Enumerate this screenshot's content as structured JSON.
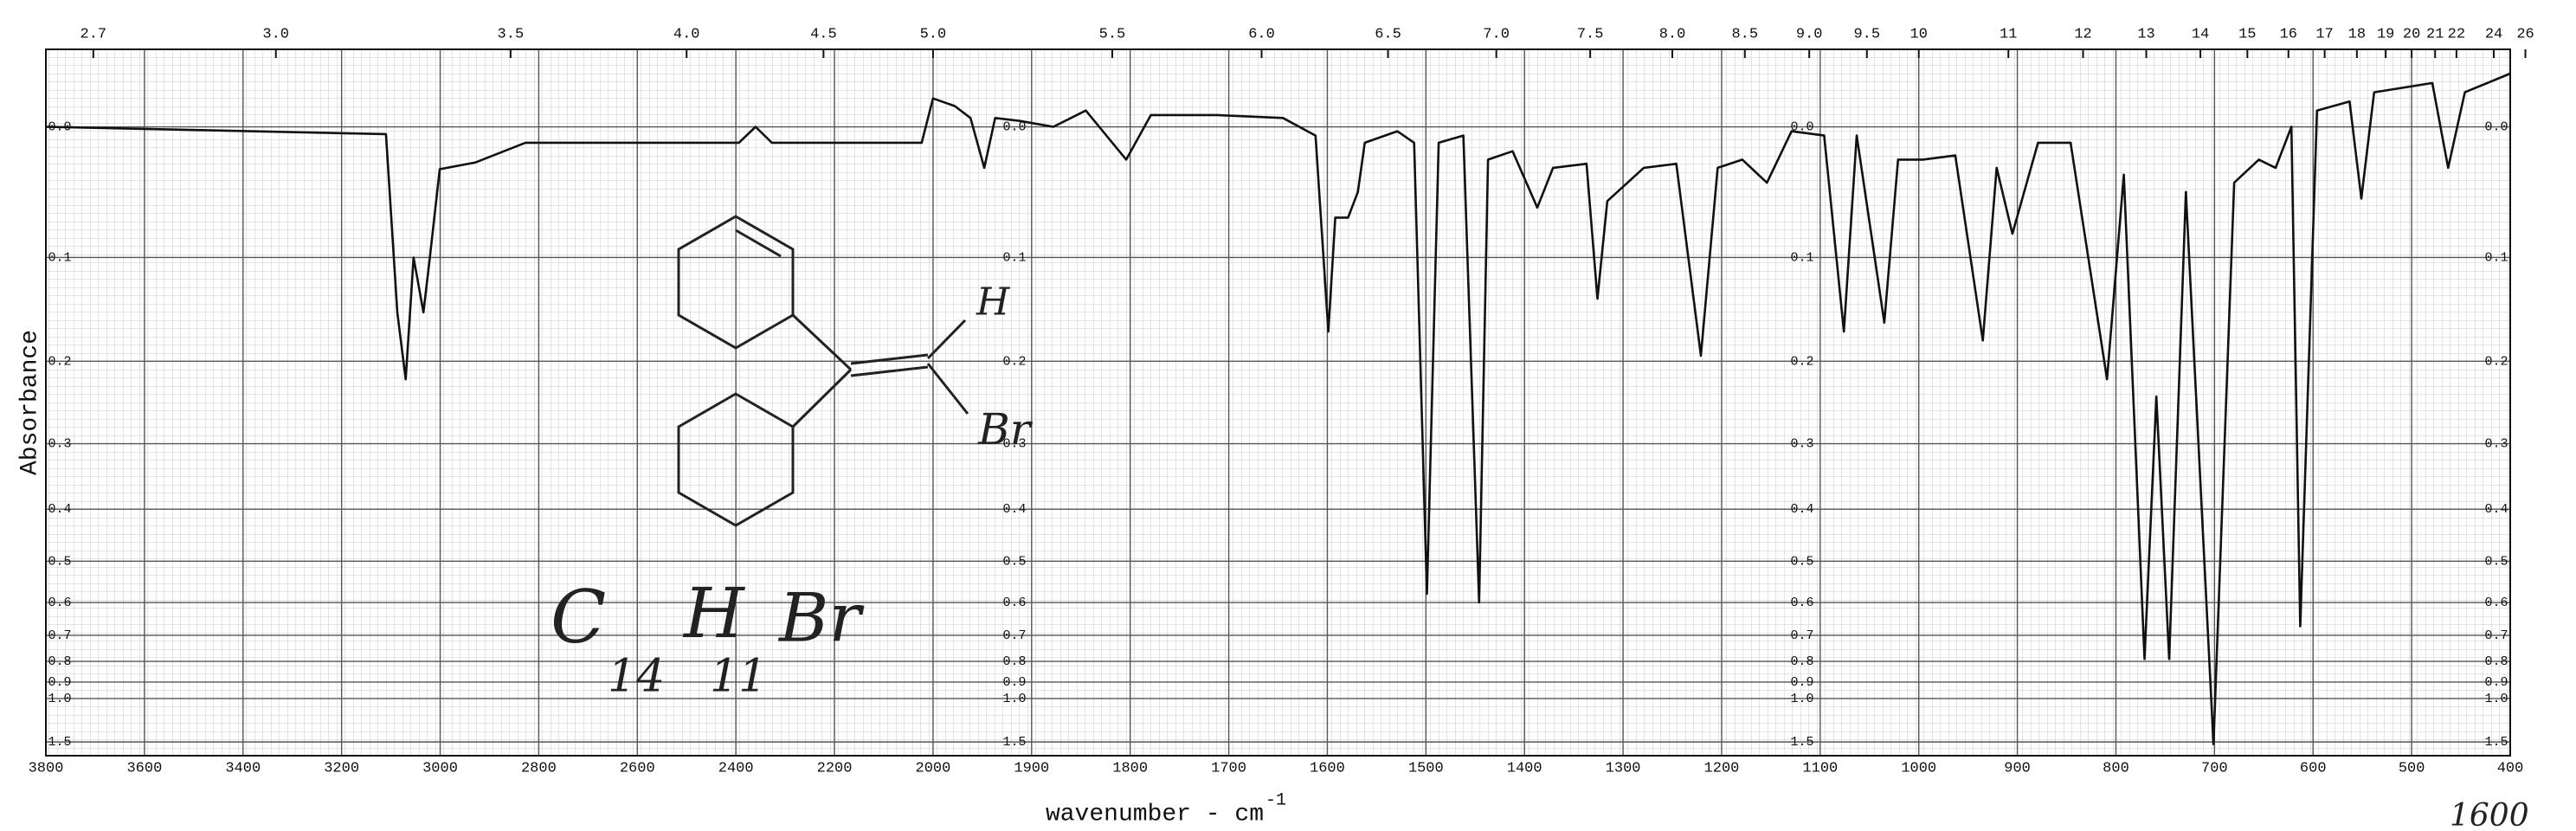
{
  "chart_data": {
    "type": "line",
    "y_label": "Absorbance",
    "x_label": "wavenumber - cm",
    "x_label_sup": "-1",
    "x": [
      3800,
      3110,
      3087,
      3070,
      3054,
      3034,
      3021,
      3001,
      2928,
      2827,
      2394,
      2360,
      2327,
      2023,
      2000,
      1978,
      1962,
      1948,
      1937,
      1912,
      1878,
      1845,
      1804,
      1779,
      1712,
      1645,
      1612,
      1599,
      1592,
      1579,
      1569,
      1562,
      1529,
      1512,
      1499,
      1487,
      1462,
      1446,
      1437,
      1412,
      1387,
      1371,
      1337,
      1326,
      1316,
      1279,
      1246,
      1221,
      1204,
      1179,
      1154,
      1129,
      1096,
      1076,
      1063,
      1035,
      1021,
      996,
      963,
      935,
      921,
      905,
      879,
      846,
      809,
      792,
      771,
      759,
      746,
      729,
      701,
      680,
      655,
      638,
      622,
      613,
      596,
      563,
      551,
      538,
      479,
      463,
      446,
      400
    ],
    "values": [
      0,
      0.005,
      0.15,
      0.22,
      0.1,
      0.15,
      0.1,
      0.03,
      0.025,
      0.011,
      0.011,
      0,
      0.011,
      0.011,
      -0.019,
      -0.014,
      -0.006,
      0.029,
      -0.006,
      -0.004,
      0,
      -0.011,
      0.023,
      -0.008,
      -0.008,
      -0.006,
      0.006,
      0.169,
      0.067,
      0.067,
      0.047,
      0.011,
      0.003,
      0.011,
      0.577,
      0.011,
      0.006,
      0.6,
      0.023,
      0.017,
      0.059,
      0.029,
      0.026,
      0.137,
      0.054,
      0.029,
      0.026,
      0.194,
      0.029,
      0.023,
      0.04,
      0.003,
      0.006,
      0.169,
      0.006,
      0.16,
      0.023,
      0.023,
      0.02,
      0.178,
      0.029,
      0.08,
      0.011,
      0.011,
      0.22,
      0.034,
      0.79,
      0.24,
      0.79,
      0.047,
      1.55,
      0.04,
      0.023,
      0.029,
      0,
      0.67,
      -0.011,
      -0.017,
      0.052,
      -0.023,
      -0.029,
      0.029,
      -0.023,
      -0.035
    ],
    "color": "#111111",
    "xlim": [
      3800,
      400
    ],
    "x_break": 2000,
    "x_break_scale": 2,
    "xticks": [
      3800,
      3600,
      3400,
      3200,
      3000,
      2800,
      2600,
      2400,
      2200,
      2000,
      1900,
      1800,
      1700,
      1600,
      1500,
      1400,
      1300,
      1200,
      1100,
      1000,
      900,
      800,
      700,
      600,
      500,
      400
    ],
    "x2ticks": [
      2.7,
      {
        "value": 3,
        "label": "3.0"
      },
      3.5,
      {
        "value": 4,
        "label": "4.0"
      },
      4.5,
      {
        "value": 5,
        "label": "5.0"
      },
      5.5,
      {
        "value": 6,
        "label": "6.0"
      },
      6.5,
      {
        "value": 7,
        "label": "7.0"
      },
      7.5,
      {
        "value": 8,
        "label": "8.0"
      },
      8.5,
      {
        "value": 9,
        "label": "9.0"
      },
      9.5,
      10,
      11,
      12,
      13,
      14,
      15,
      16,
      17,
      18,
      19,
      20,
      21,
      22,
      24,
      26
    ],
    "ylim": [
      -0.05,
      2
    ],
    "yscale": "absorbance",
    "yticks": [
      {
        "value": 0,
        "label": "0.0"
      },
      0.1,
      0.2,
      0.3,
      0.4,
      0.5,
      0.6,
      0.7,
      0.8,
      0.9,
      {
        "value": 1,
        "label": "1.0"
      },
      1.5
    ],
    "grid": true,
    "annotations": [
      "H",
      "Br",
      "C",
      "14",
      "H",
      "11",
      "Br",
      "1600"
    ]
  }
}
